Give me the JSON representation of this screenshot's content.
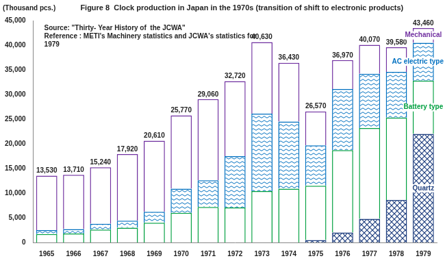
{
  "chart_data": {
    "type": "bar",
    "title": "Figure 8  Clock production in Japan in the 1970s (transition of shift to electronic products)",
    "ylabel": "(Thousand pcs.)",
    "annotations": [
      "Source: \"Thirty- Year History of  the JCWA\"",
      "Reference : METI's Machinery statistics and JCWA's statistics for",
      "1979"
    ],
    "categories": [
      "1965",
      "1966",
      "1967",
      "1968",
      "1969",
      "1970",
      "1971",
      "1972",
      "1973",
      "1974",
      "1975",
      "1976",
      "1977",
      "1978",
      "1979"
    ],
    "series": [
      {
        "name": "Quartz",
        "color": "#1f3f7f",
        "values": [
          null,
          null,
          null,
          null,
          null,
          null,
          null,
          null,
          null,
          null,
          500,
          2000,
          4800,
          8600,
          22000
        ]
      },
      {
        "name": "Battery type",
        "color": "#00a040",
        "values": [
          1700,
          1800,
          2600,
          3000,
          4000,
          6000,
          7200,
          7100,
          10400,
          10900,
          11000,
          16700,
          18400,
          16700,
          10800
        ]
      },
      {
        "name": "AC electric type",
        "color": "#0070c0",
        "values": [
          800,
          900,
          1200,
          1400,
          2200,
          4900,
          5400,
          10400,
          15700,
          13600,
          8200,
          12400,
          11000,
          9300,
          7700
        ]
      },
      {
        "name": "Mechanical",
        "color": "#7030a0",
        "values": [
          11030,
          11010,
          11440,
          13520,
          14410,
          14870,
          16460,
          15220,
          14530,
          11930,
          6870,
          5870,
          5870,
          4980,
          2960
        ]
      }
    ],
    "totals": [
      13530,
      13710,
      15240,
      17920,
      20610,
      25770,
      29060,
      32720,
      40630,
      36430,
      26570,
      36970,
      40070,
      39580,
      43460
    ],
    "total_labels": [
      "13,530",
      "13,710",
      "15,240",
      "17,920",
      "20,610",
      "25,770",
      "29,060",
      "32,720",
      "40,630",
      "36,430",
      "26,570",
      "36,970",
      "40,070",
      "39,580",
      "43,460"
    ],
    "ylim": [
      0,
      45000
    ],
    "yticks": [
      0,
      {
        "value": 5000,
        "label": "5,000"
      },
      {
        "value": 10000,
        "label": "10,000"
      },
      {
        "value": 15000,
        "label": "15,000"
      },
      {
        "value": 20000,
        "label": "20,000"
      },
      {
        "value": 25000,
        "label": "25,000"
      },
      {
        "value": 30000,
        "label": "30,000"
      },
      {
        "value": 35000,
        "label": "35,000"
      },
      {
        "value": 40000,
        "label": "40,000"
      },
      {
        "value": 45000,
        "label": "45,000"
      }
    ],
    "stacked": true,
    "grid": false
  }
}
